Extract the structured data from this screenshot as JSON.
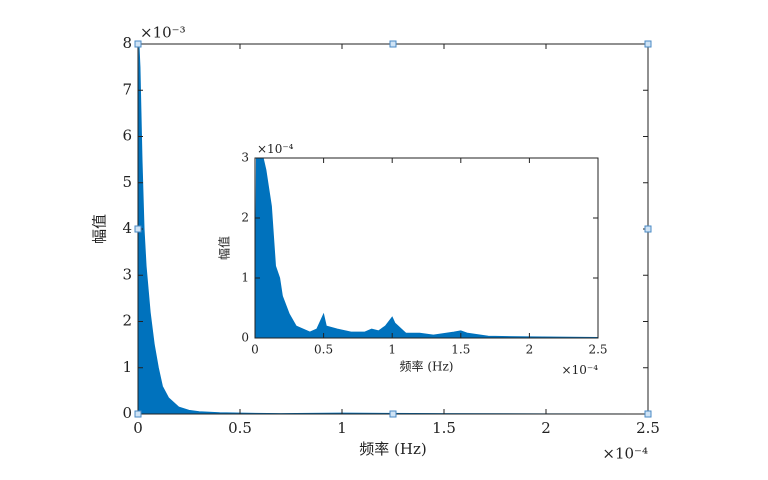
{
  "chart_data": [
    {
      "type": "area",
      "color": "#0072bd",
      "x_label": "频率 (Hz)",
      "y_label": "幅值",
      "x_multiplier": "×10⁻⁴",
      "y_multiplier": "×10⁻³",
      "x": [
        0,
        0.005,
        0.01,
        0.015,
        0.02,
        0.03,
        0.04,
        0.05,
        0.06,
        0.08,
        0.1,
        0.12,
        0.15,
        0.2,
        0.25,
        0.3,
        0.4,
        0.5,
        0.7,
        1,
        1.5,
        2,
        2.5
      ],
      "values": [
        0,
        8,
        7.5,
        6.5,
        5.5,
        4,
        3.2,
        2.7,
        2.2,
        1.5,
        1,
        0.6,
        0.35,
        0.15,
        0.08,
        0.05,
        0.03,
        0.02,
        0.01,
        0.02,
        0.01,
        0.005,
        0.003
      ],
      "xlim": [
        0,
        2.5
      ],
      "xticks": [
        0,
        0.5,
        1,
        1.5,
        2,
        2.5
      ],
      "ylim": [
        0,
        8
      ],
      "yticks": [
        0,
        1,
        2,
        3,
        4,
        5,
        6,
        7,
        8
      ]
    },
    {
      "type": "area",
      "color": "#0072bd",
      "x_label": "频率 (Hz)",
      "y_label": "幅值",
      "x_multiplier": "×10⁻⁴",
      "y_multiplier": "×10⁻⁴",
      "x": [
        0,
        0.01,
        0.03,
        0.06,
        0.08,
        0.1,
        0.12,
        0.15,
        0.18,
        0.2,
        0.25,
        0.3,
        0.4,
        0.45,
        0.48,
        0.5,
        0.52,
        0.6,
        0.7,
        0.8,
        0.85,
        0.9,
        0.95,
        1,
        1.02,
        1.1,
        1.2,
        1.3,
        1.45,
        1.5,
        1.55,
        1.7,
        2,
        2.5
      ],
      "values": [
        0,
        3,
        3,
        3,
        2.8,
        2.5,
        2.2,
        1.2,
        1,
        0.7,
        0.4,
        0.2,
        0.1,
        0.15,
        0.3,
        0.4,
        0.2,
        0.15,
        0.1,
        0.1,
        0.15,
        0.12,
        0.2,
        0.35,
        0.25,
        0.08,
        0.08,
        0.05,
        0.1,
        0.12,
        0.08,
        0.03,
        0.02,
        0.01
      ],
      "xlim": [
        0,
        2.5
      ],
      "xticks": [
        0,
        0.5,
        1,
        1.5,
        2,
        2.5
      ],
      "ylim": [
        0,
        3
      ],
      "yticks": [
        0,
        1,
        2,
        3
      ]
    }
  ]
}
